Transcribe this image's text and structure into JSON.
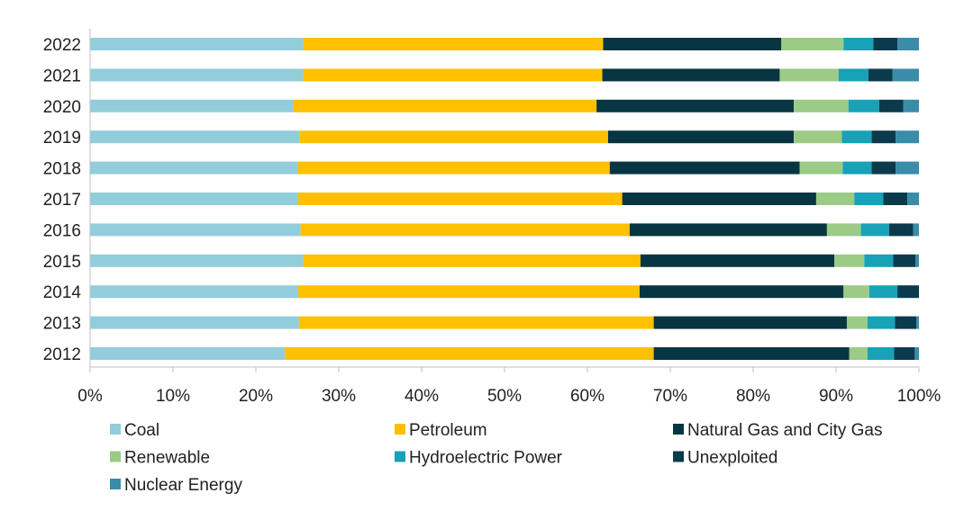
{
  "chart_data": {
    "type": "bar",
    "orientation": "horizontal",
    "stacked": "percent",
    "title": "",
    "xlabel": "",
    "ylabel": "",
    "xlim": [
      0,
      100
    ],
    "x_ticks": [
      "0%",
      "10%",
      "20%",
      "30%",
      "40%",
      "50%",
      "60%",
      "70%",
      "80%",
      "90%",
      "100%"
    ],
    "grid": false,
    "legend_position": "bottom",
    "categories": [
      "2022",
      "2021",
      "2020",
      "2019",
      "2018",
      "2017",
      "2016",
      "2015",
      "2014",
      "2013",
      "2012"
    ],
    "series": [
      {
        "name": "Coal",
        "color": "#92cddc",
        "values": [
          25.7,
          25.7,
          24.5,
          25.3,
          25.1,
          25.1,
          25.4,
          25.7,
          25.1,
          25.2,
          23.5
        ]
      },
      {
        "name": "Petroleum",
        "color": "#ffc000",
        "values": [
          36.2,
          36.1,
          36.6,
          37.2,
          37.6,
          39.1,
          39.7,
          40.7,
          41.2,
          42.8,
          44.5
        ]
      },
      {
        "name": "Natural Gas and City Gas",
        "color": "#073642",
        "values": [
          21.5,
          21.4,
          23.8,
          22.4,
          22.9,
          23.4,
          23.8,
          23.4,
          24.6,
          23.3,
          23.6
        ]
      },
      {
        "name": "Renewable",
        "color": "#9bcb86",
        "values": [
          7.5,
          7.1,
          6.6,
          5.8,
          5.2,
          4.6,
          4.1,
          3.6,
          3.1,
          2.5,
          2.2
        ]
      },
      {
        "name": "Hydroelectric Power",
        "color": "#17a2b8",
        "values": [
          3.6,
          3.6,
          3.7,
          3.6,
          3.5,
          3.5,
          3.4,
          3.5,
          3.4,
          3.3,
          3.2
        ]
      },
      {
        "name": "Unexploited",
        "color": "#0b3a4d",
        "values": [
          2.9,
          2.9,
          2.9,
          2.9,
          2.9,
          2.9,
          2.9,
          2.7,
          2.6,
          2.6,
          2.5
        ]
      },
      {
        "name": "Nuclear Energy",
        "color": "#3a8ca8",
        "values": [
          2.6,
          3.2,
          1.9,
          2.8,
          2.8,
          1.4,
          0.7,
          0.4,
          0.0,
          0.3,
          0.5
        ]
      }
    ]
  }
}
